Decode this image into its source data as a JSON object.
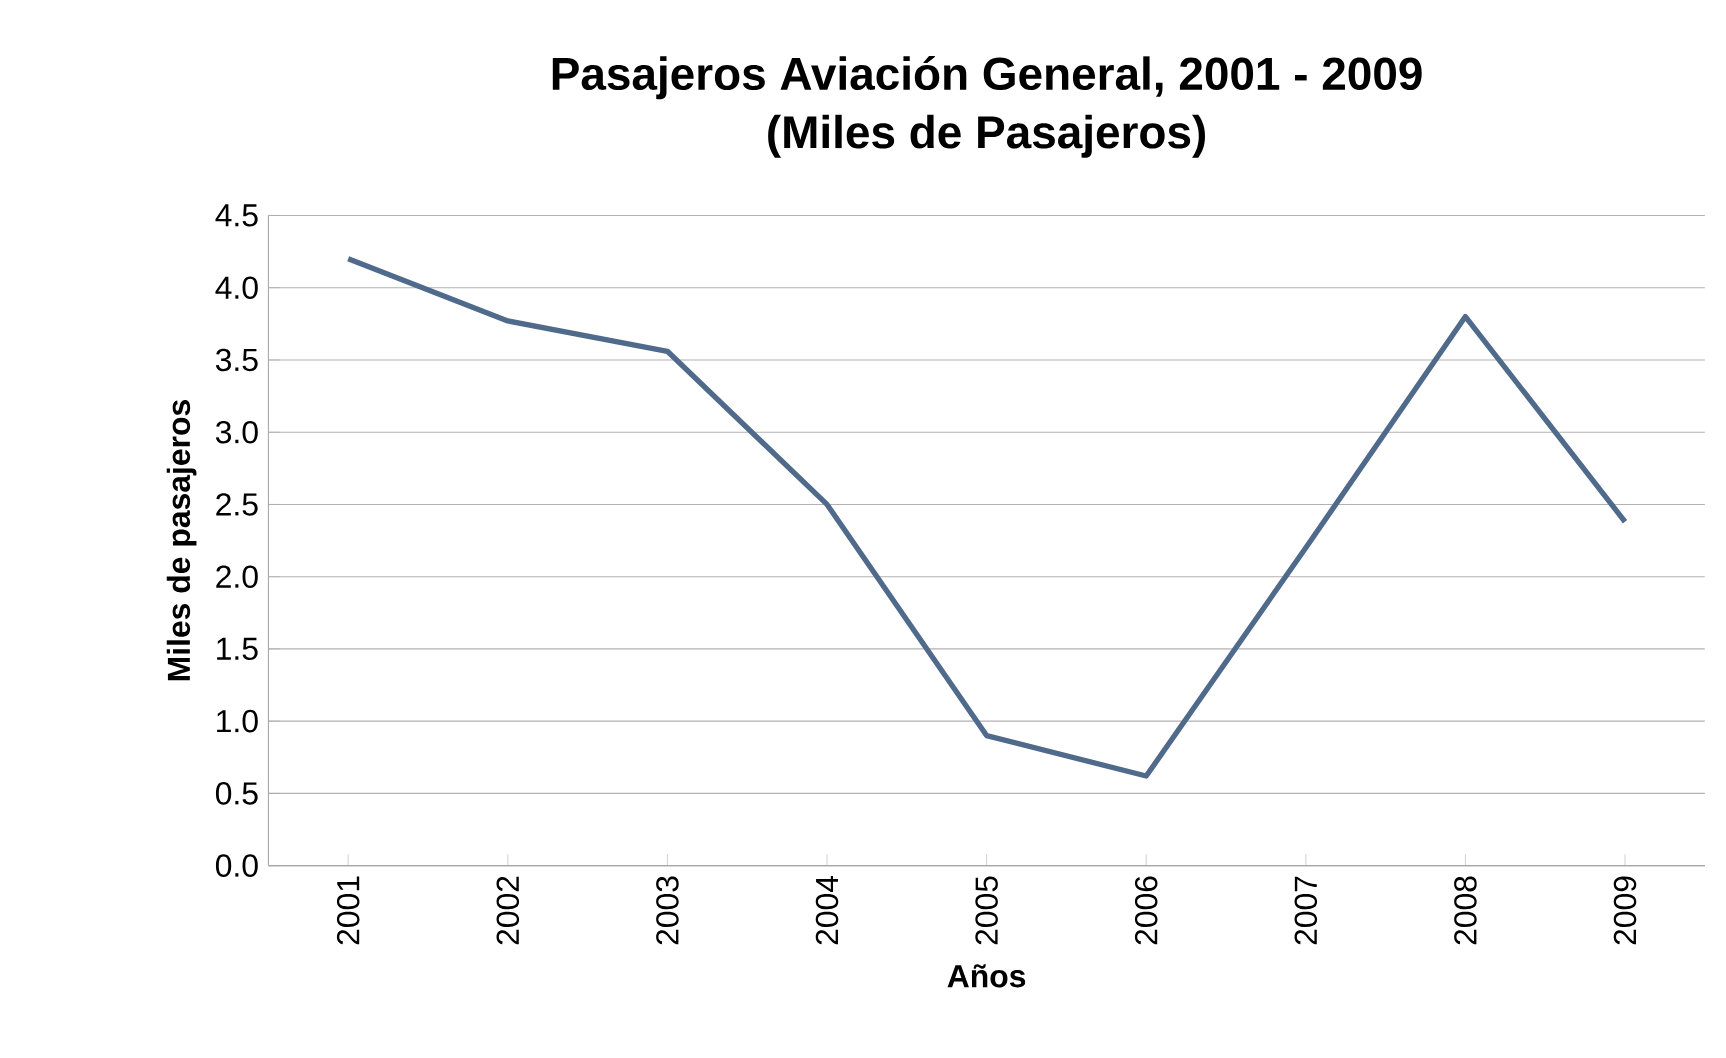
{
  "chart_data": {
    "type": "line",
    "title": "Pasajeros Aviación General, 2001 - 2009",
    "subtitle": "(Miles de Pasajeros)",
    "xlabel": "Años",
    "ylabel": "Miles de pasajeros",
    "categories": [
      "2001",
      "2002",
      "2003",
      "2004",
      "2005",
      "2006",
      "2007",
      "2008",
      "2009"
    ],
    "series": [
      {
        "color": "#4f6a8a",
        "values": [
          4.2,
          3.77,
          3.56,
          2.5,
          0.9,
          0.62,
          2.2,
          3.8,
          2.38
        ]
      }
    ],
    "ylim": [
      0,
      4.5
    ],
    "yticks": [
      {
        "value": 0,
        "label": "0.0"
      },
      {
        "value": 0.5,
        "label": "0.5"
      },
      {
        "value": 1,
        "label": "1.0"
      },
      {
        "value": 1.5,
        "label": "1.5"
      },
      {
        "value": 2,
        "label": "2.0"
      },
      {
        "value": 2.5,
        "label": "2.5"
      },
      {
        "value": 3,
        "label": "3.0"
      },
      {
        "value": 3.5,
        "label": "3.5"
      },
      {
        "value": 4,
        "label": "4.0"
      },
      {
        "value": 4.5,
        "label": "4.5"
      }
    ],
    "grid": "y",
    "marker": "none",
    "line_style": "solid"
  }
}
